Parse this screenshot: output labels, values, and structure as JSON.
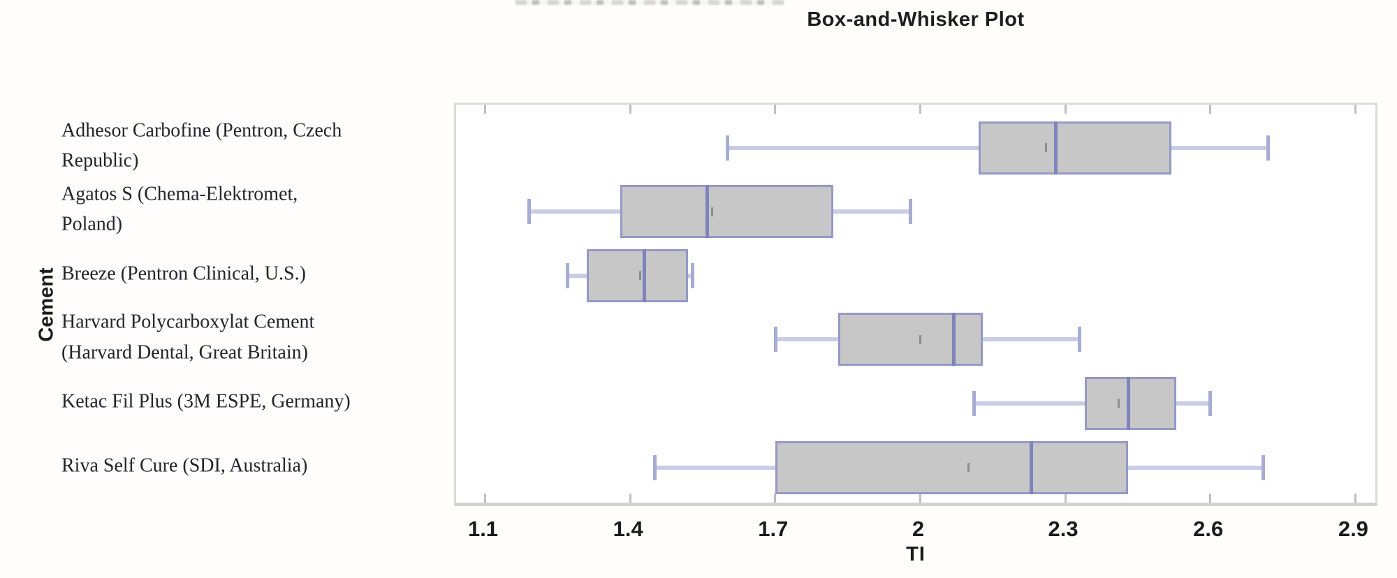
{
  "title": "Box-and-Whisker Plot",
  "axes": {
    "x_label": "TI",
    "y_label": "Cement"
  },
  "colors": {
    "box_fill": "#c7c7c7",
    "box_border": "#9598c6",
    "median": "#7f83bc",
    "whisker_line": "#c9cce5",
    "whisker_cap": "#a8abd2",
    "mean_marker": "#8d8d8d",
    "frame": "#dbdbdb",
    "tick": "#bfbfbf",
    "axis_text": "#1b1b1b"
  },
  "chart_data": {
    "type": "boxplot-horizontal",
    "title": "Box-and-Whisker Plot",
    "xlabel": "TI",
    "ylabel": "Cement",
    "xlim": [
      1.04,
      2.95
    ],
    "x_ticks": [
      {
        "value": 1.1,
        "label": "1.1"
      },
      {
        "value": 1.4,
        "label": "1.4"
      },
      {
        "value": 1.7,
        "label": "1.7"
      },
      {
        "value": 2.0,
        "label": "2"
      },
      {
        "value": 2.3,
        "label": "2.3"
      },
      {
        "value": 2.6,
        "label": "2.6"
      },
      {
        "value": 2.9,
        "label": "2.9"
      }
    ],
    "grid": false,
    "legend": false,
    "categories": [
      "Adhesor Carbofine (Pentron, Czech Republic)",
      "Agatos S (Chema-Elektromet, Poland)",
      "Breeze (Pentron Clinical, U.S.)",
      "Harvard Polycarboxylat Cement (Harvard Dental, Great Britain)",
      "Ketac Fil Plus (3M ESPE, Germany)",
      "Riva Self Cure (SDI, Australia)"
    ],
    "series": [
      {
        "name": "Adhesor Carbofine (Pentron, Czech Republic)",
        "label_lines": "Adhesor Carbofine (Pentron, Czech\nRepublic)",
        "min": 1.6,
        "q1": 2.12,
        "median": 2.28,
        "q3": 2.52,
        "max": 2.72,
        "mean": 2.26
      },
      {
        "name": "Agatos S (Chema-Elektromet, Poland)",
        "label_lines": "Agatos S (Chema-Elektromet,\nPoland)",
        "min": 1.19,
        "q1": 1.38,
        "median": 1.56,
        "q3": 1.82,
        "max": 1.98,
        "mean": 1.57
      },
      {
        "name": "Breeze (Pentron Clinical, U.S.)",
        "label_lines": "Breeze (Pentron Clinical, U.S.)",
        "min": 1.27,
        "q1": 1.31,
        "median": 1.43,
        "q3": 1.52,
        "max": 1.53,
        "mean": 1.42
      },
      {
        "name": "Harvard Polycarboxylat Cement (Harvard Dental, Great Britain)",
        "label_lines": "Harvard Polycarboxylat Cement\n(Harvard Dental, Great Britain)",
        "min": 1.7,
        "q1": 1.83,
        "median": 2.07,
        "q3": 2.13,
        "max": 2.33,
        "mean": 2.0
      },
      {
        "name": "Ketac Fil Plus (3M ESPE, Germany)",
        "label_lines": "Ketac Fil Plus (3M ESPE, Germany)",
        "min": 2.11,
        "q1": 2.34,
        "median": 2.43,
        "q3": 2.53,
        "max": 2.6,
        "mean": 2.41
      },
      {
        "name": "Riva Self Cure (SDI, Australia)",
        "label_lines": "Riva Self Cure (SDI, Australia)",
        "min": 1.45,
        "q1": 1.7,
        "median": 2.23,
        "q3": 2.43,
        "max": 2.71,
        "mean": 2.1
      }
    ]
  }
}
